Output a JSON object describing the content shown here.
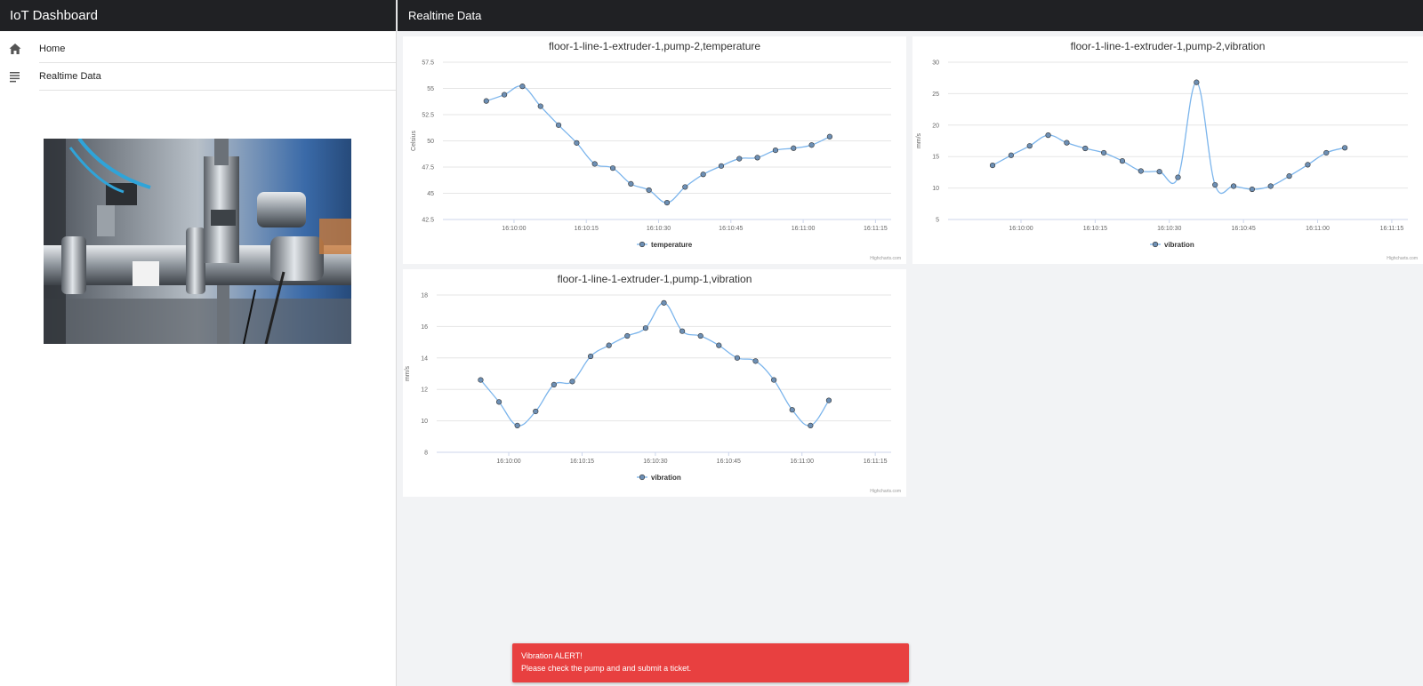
{
  "app": {
    "title": "IoT Dashboard"
  },
  "sidebar": {
    "items": [
      {
        "label": "Home",
        "icon": "home-icon"
      },
      {
        "label": "Realtime Data",
        "icon": "list-icon"
      }
    ]
  },
  "main": {
    "title": "Realtime Data"
  },
  "colors": {
    "line": "#7cb5ec",
    "marker": "#6d8fb4",
    "header": "#202124",
    "alert": "#e84040"
  },
  "chart_data": [
    {
      "type": "line",
      "title": "floor-1-line-1-extruder-1,pump-2,temperature",
      "ylabel": "Celsius",
      "xlabel": "",
      "ylim": [
        42.5,
        57.5
      ],
      "yticks": [
        "42.5",
        "45",
        "47.5",
        "50",
        "52.5",
        "55",
        "57.5"
      ],
      "ytick_values": [
        42.5,
        45,
        47.5,
        50,
        52.5,
        55,
        57.5
      ],
      "xticks": [
        "16:10:00",
        "16:10:15",
        "16:10:30",
        "16:10:45",
        "16:11:00",
        "16:11:15"
      ],
      "x_start": -2.4,
      "x_end": 22.4,
      "legend": "bottom-center",
      "series": [
        {
          "name": "temperature",
          "values": [
            53.8,
            54.4,
            55.2,
            53.3,
            51.5,
            49.8,
            47.8,
            47.4,
            45.9,
            45.3,
            44.1,
            45.6,
            46.8,
            47.6,
            48.3,
            48.4,
            49.1,
            49.3,
            49.6,
            50.4
          ]
        }
      ],
      "credits": "Highcharts.com"
    },
    {
      "type": "line",
      "title": "floor-1-line-1-extruder-1,pump-2,vibration",
      "ylabel": "mm/s",
      "xlabel": "",
      "ylim": [
        5,
        30
      ],
      "yticks": [
        "5",
        "10",
        "15",
        "20",
        "25",
        "30"
      ],
      "ytick_values": [
        5,
        10,
        15,
        20,
        25,
        30
      ],
      "xticks": [
        "16:10:00",
        "16:10:15",
        "16:10:30",
        "16:10:45",
        "16:11:00",
        "16:11:15"
      ],
      "x_start": -2.4,
      "x_end": 22.4,
      "legend": "bottom-center",
      "series": [
        {
          "name": "vibration",
          "values": [
            13.6,
            15.2,
            16.7,
            18.4,
            17.2,
            16.3,
            15.6,
            14.3,
            12.7,
            12.6,
            11.7,
            26.8,
            10.5,
            10.3,
            9.8,
            10.3,
            11.9,
            13.7,
            15.6,
            16.4
          ]
        }
      ],
      "credits": "Highcharts.com"
    },
    {
      "type": "line",
      "title": "floor-1-line-1-extruder-1,pump-1,vibration",
      "ylabel": "mm/s",
      "xlabel": "",
      "ylim": [
        8,
        18
      ],
      "yticks": [
        "8",
        "10",
        "12",
        "14",
        "16",
        "18"
      ],
      "ytick_values": [
        8,
        10,
        12,
        14,
        16,
        18
      ],
      "xticks": [
        "16:10:00",
        "16:10:15",
        "16:10:30",
        "16:10:45",
        "16:11:00",
        "16:11:15"
      ],
      "x_start": -2.4,
      "x_end": 22.4,
      "legend": "bottom-center",
      "series": [
        {
          "name": "vibration",
          "values": [
            12.6,
            11.2,
            9.7,
            10.6,
            12.3,
            12.5,
            14.1,
            14.8,
            15.4,
            15.9,
            17.5,
            15.7,
            15.4,
            14.8,
            14.0,
            13.8,
            12.6,
            10.7,
            9.7,
            11.3
          ]
        }
      ],
      "credits": "Highcharts.com"
    }
  ],
  "alert": {
    "title": "Vibration ALERT!",
    "message": "Please check the pump and and submit a ticket."
  }
}
